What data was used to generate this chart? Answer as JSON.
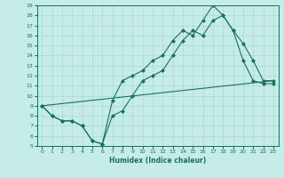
{
  "xlabel": "Humidex (Indice chaleur)",
  "xlim": [
    -0.5,
    23.5
  ],
  "ylim": [
    5,
    19
  ],
  "xticks": [
    0,
    1,
    2,
    3,
    4,
    5,
    6,
    7,
    8,
    9,
    10,
    11,
    12,
    13,
    14,
    15,
    16,
    17,
    18,
    19,
    20,
    21,
    22,
    23
  ],
  "yticks": [
    5,
    6,
    7,
    8,
    9,
    10,
    11,
    12,
    13,
    14,
    15,
    16,
    17,
    18,
    19
  ],
  "bg_color": "#c5ece8",
  "grid_color": "#a8d8d2",
  "line_color": "#1a7060",
  "line1_x": [
    0,
    1,
    2,
    3,
    4,
    5,
    6,
    7,
    8,
    9,
    10,
    11,
    12,
    13,
    14,
    15,
    16,
    17,
    18,
    19,
    20,
    21,
    22,
    23
  ],
  "line1_y": [
    9.0,
    8.0,
    7.5,
    7.5,
    7.0,
    5.5,
    5.2,
    9.5,
    11.5,
    12.0,
    12.5,
    13.5,
    14.0,
    15.5,
    16.5,
    16.0,
    17.5,
    19.0,
    18.0,
    16.5,
    15.2,
    13.5,
    11.5,
    11.5
  ],
  "line2_x": [
    0,
    1,
    2,
    3,
    4,
    5,
    6,
    7,
    8,
    9,
    10,
    11,
    12,
    13,
    14,
    15,
    16,
    17,
    18,
    19,
    20,
    21,
    22,
    23
  ],
  "line2_y": [
    9.0,
    8.0,
    7.5,
    7.5,
    7.0,
    5.5,
    5.2,
    8.0,
    8.5,
    10.0,
    11.5,
    12.0,
    12.5,
    14.0,
    15.5,
    16.5,
    16.0,
    17.5,
    18.0,
    16.5,
    13.5,
    11.5,
    11.2,
    11.2
  ],
  "line3_x": [
    0,
    23
  ],
  "line3_y": [
    9.0,
    11.5
  ]
}
